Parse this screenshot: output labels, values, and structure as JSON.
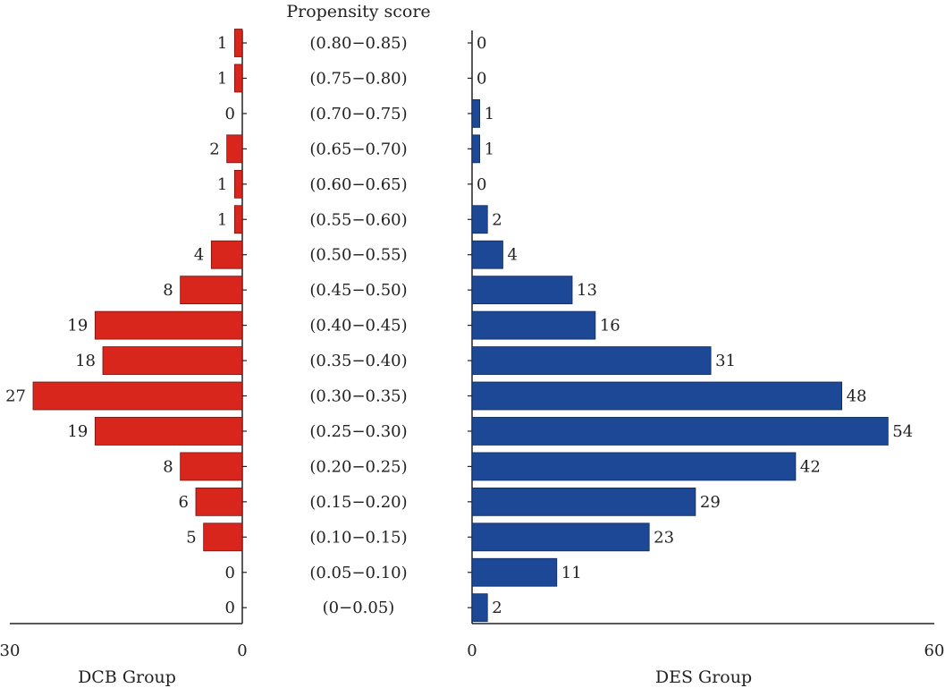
{
  "chart_data": {
    "type": "bar",
    "title": "Propensity score",
    "categories": [
      "(0.80−0.85)",
      "(0.75−0.80)",
      "(0.70−0.75)",
      "(0.65−0.70)",
      "(0.60−0.65)",
      "(0.55−0.60)",
      "(0.50−0.55)",
      "(0.45−0.50)",
      "(0.40−0.45)",
      "(0.35−0.40)",
      "(0.30−0.35)",
      "(0.25−0.30)",
      "(0.20−0.25)",
      "(0.15−0.20)",
      "(0.10−0.15)",
      "(0.05−0.10)",
      "(0−0.05)"
    ],
    "series": [
      {
        "name": "DCB Group",
        "color": "#d9261c",
        "values": [
          1,
          1,
          0,
          2,
          1,
          1,
          4,
          8,
          19,
          18,
          27,
          19,
          8,
          6,
          5,
          0,
          0
        ],
        "xlim": [
          30,
          0
        ],
        "ticks": [
          "30",
          "0"
        ]
      },
      {
        "name": "DES Group",
        "color": "#1c4896",
        "values": [
          0,
          0,
          1,
          1,
          0,
          2,
          4,
          13,
          16,
          31,
          48,
          54,
          42,
          29,
          23,
          11,
          2
        ],
        "xlim": [
          0,
          60
        ],
        "ticks": [
          "0",
          "60"
        ]
      }
    ],
    "orientation": "horizontal",
    "grid": false
  }
}
